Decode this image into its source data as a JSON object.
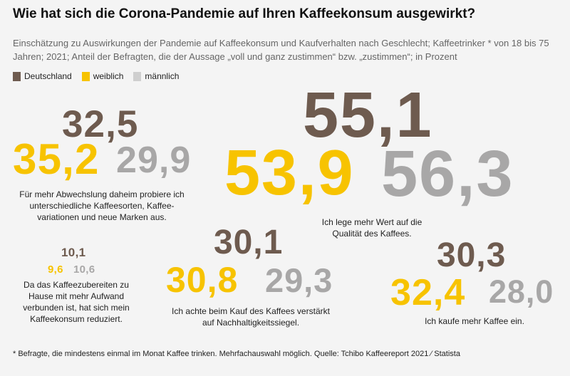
{
  "title": "Wie hat sich die Corona-Pandemie auf Ihren Kaffeekonsum ausgewirkt?",
  "subtitle": "Einschätzung zu Auswirkungen der Pandemie auf Kaffeekonsum und Kaufverhalten nach Geschlecht; Kaffeetrinker * von 18 bis 75 Jahren; 2021; Anteil der Befragten, die der Aussage „voll und ganz zustimmen“ bzw. „zustimmen“; in Prozent",
  "footnote": "* Befragte, die mindestens einmal im Monat Kaffee trinken. Mehrfachauswahl möglich. Quelle: Tchibo Kaffeereport 2021 ⁄ Statista",
  "colors": {
    "Deutschland": "#6e5b4f",
    "weiblich": "#f7c300",
    "männlich": "#a8a7a7"
  },
  "chart_data": {
    "type": "table",
    "title": "Wie hat sich die Corona-Pandemie auf Ihren Kaffeekonsum ausgewirkt?",
    "legend": [
      "Deutschland",
      "weiblich",
      "männlich"
    ],
    "categories": [
      "Für mehr Abwechslung daheim probiere ich unterschiedliche Kaffeesorten, Kaffeevariationen und neue Marken aus.",
      "Ich lege mehr Wert auf die Qualität des Kaffees.",
      "Da das Kaffeezubereiten zu Hause mit mehr Aufwand verbunden ist, hat sich mein Kaffeekonsum reduziert.",
      "Ich achte beim Kauf des Kaffees verstärkt auf Nachhaltigkeitssiegel.",
      "Ich kaufe mehr Kaffee ein."
    ],
    "series": [
      {
        "name": "Deutschland",
        "values": [
          32.5,
          55.1,
          10.1,
          30.1,
          30.3
        ],
        "labels": [
          "32,5",
          "55,1",
          "10,1",
          "30,1",
          "30,3"
        ]
      },
      {
        "name": "weiblich",
        "values": [
          35.2,
          53.9,
          9.6,
          30.8,
          32.4
        ],
        "labels": [
          "35,2",
          "53,9",
          "9,6",
          "30,8",
          "32,4"
        ]
      },
      {
        "name": "männlich",
        "values": [
          29.9,
          56.3,
          10.6,
          29.3,
          28.0
        ],
        "labels": [
          "29,9",
          "56,3",
          "10,6",
          "29,3",
          "28,0"
        ]
      }
    ],
    "label_lines": [
      [
        "Für mehr Abwechslung daheim probiere ich",
        "unterschiedliche Kaffeesorten, Kaffee-",
        "variationen und neue Marken aus."
      ],
      [
        "Ich lege mehr Wert auf die",
        "Qualität des Kaffees."
      ],
      [
        "Da das Kaffeezubereiten zu",
        "Hause mit mehr Aufwand",
        "verbunden ist, hat sich mein",
        "Kaffeekonsum reduziert."
      ],
      [
        "Ich achte beim Kauf des Kaffees verstärkt",
        "auf Nachhaltigkeitssiegel."
      ],
      [
        "Ich kaufe mehr Kaffee ein."
      ]
    ]
  }
}
